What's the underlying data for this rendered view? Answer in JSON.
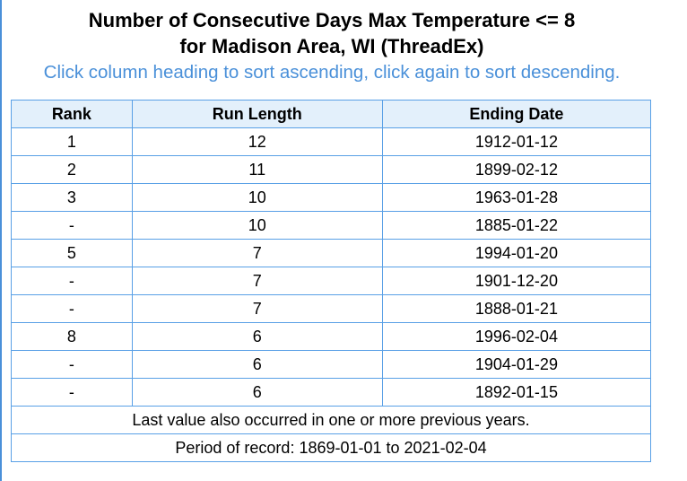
{
  "title_line1": "Number of Consecutive Days Max Temperature <= 8",
  "title_line2": "for Madison Area, WI (ThreadEx)",
  "instructions": "Click column heading to sort ascending, click again to sort descending.",
  "table": {
    "headers": [
      "Rank",
      "Run Length",
      "Ending Date"
    ],
    "rows": [
      {
        "rank": "1",
        "run_length": "12",
        "ending_date": "1912-01-12"
      },
      {
        "rank": "2",
        "run_length": "11",
        "ending_date": "1899-02-12"
      },
      {
        "rank": "3",
        "run_length": "10",
        "ending_date": "1963-01-28"
      },
      {
        "rank": "-",
        "run_length": "10",
        "ending_date": "1885-01-22"
      },
      {
        "rank": "5",
        "run_length": "7",
        "ending_date": "1994-01-20"
      },
      {
        "rank": "-",
        "run_length": "7",
        "ending_date": "1901-12-20"
      },
      {
        "rank": "-",
        "run_length": "7",
        "ending_date": "1888-01-21"
      },
      {
        "rank": "8",
        "run_length": "6",
        "ending_date": "1996-02-04"
      },
      {
        "rank": "-",
        "run_length": "6",
        "ending_date": "1904-01-29"
      },
      {
        "rank": "-",
        "run_length": "6",
        "ending_date": "1892-01-15"
      }
    ],
    "footnote": "Last value also occurred in one or more previous years.",
    "period": "Period of record: 1869-01-01 to 2021-02-04"
  },
  "colors": {
    "accent": "#4a90d9",
    "border": "#59a0e6",
    "header_bg": "#e3f0fb"
  }
}
